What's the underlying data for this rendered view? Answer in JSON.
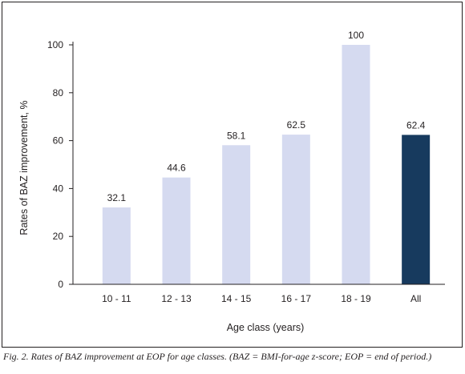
{
  "chart_data": {
    "type": "bar",
    "categories": [
      "10 - 11",
      "12 - 13",
      "14 - 15",
      "16 - 17",
      "18 - 19",
      "All"
    ],
    "values": [
      32.1,
      44.6,
      58.1,
      62.5,
      100,
      62.4
    ],
    "value_labels": [
      "32.1",
      "44.6",
      "58.1",
      "62.5",
      "100",
      "62.4"
    ],
    "title": "",
    "xlabel": "Age class (years)",
    "ylabel": "Rates of BAZ improvement, %",
    "ylim": [
      0,
      100
    ],
    "yticks": [
      0,
      20,
      40,
      60,
      80,
      100
    ],
    "grid": false,
    "legend": "none",
    "colors": {
      "bar": "#d5daf0",
      "highlight": "#173a5e",
      "axis": "#231f20"
    },
    "highlight_index": 5
  },
  "caption": "Fig. 2. Rates of BAZ improvement at EOP for age classes. (BAZ = BMI-for-age z-score; EOP = end of period.)"
}
